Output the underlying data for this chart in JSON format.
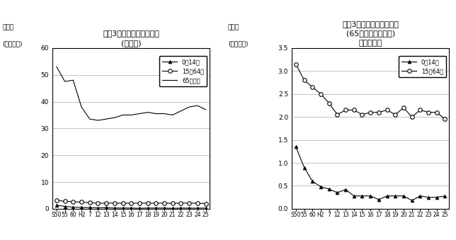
{
  "x_labels": [
    "S50",
    "55",
    "60",
    "H2",
    "7",
    "12",
    "13",
    "14",
    "15",
    "16",
    "17",
    "18",
    "19",
    "20",
    "21",
    "22",
    "23",
    "24",
    "25"
  ],
  "x_indices": [
    0,
    1,
    2,
    3,
    4,
    5,
    6,
    7,
    8,
    9,
    10,
    11,
    12,
    13,
    14,
    15,
    16,
    17,
    18
  ],
  "age65_data": [
    53.0,
    47.5,
    48.0,
    38.0,
    33.5,
    33.0,
    33.5,
    34.0,
    35.0,
    35.0,
    35.5,
    36.0,
    35.5,
    35.5,
    35.0,
    36.5,
    38.0,
    38.5,
    37.0
  ],
  "age15_64_data": [
    3.15,
    2.8,
    2.65,
    2.5,
    2.3,
    2.05,
    2.15,
    2.15,
    2.05,
    2.1,
    2.1,
    2.15,
    2.05,
    2.2,
    2.0,
    2.15,
    2.1,
    2.1,
    1.95
  ],
  "age0_14_data": [
    1.35,
    0.9,
    0.6,
    0.48,
    0.43,
    0.35,
    0.42,
    0.28,
    0.28,
    0.28,
    0.2,
    0.28,
    0.28,
    0.28,
    0.18,
    0.28,
    0.25,
    0.25,
    0.28
  ],
  "title_left1": "年陂3区分別死亡率の推移",
  "title_left2": "(熊本県)",
  "ylabel_line1": "死亡率",
  "ylabel_line2": "(人口千対)",
  "title_right1": "年陂3区分別死亡率の推移",
  "title_right2": "(65歳未満　熊本県)",
  "title_right3": "左表の拡大",
  "legend_age0": "0～14歳",
  "legend_age15": "15～64歳",
  "legend_age65": "65歳以上",
  "ylim_left": [
    0,
    60
  ],
  "yticks_left": [
    0,
    10,
    20,
    30,
    40,
    50,
    60
  ],
  "ylim_right": [
    0,
    3.5
  ],
  "yticks_right": [
    0,
    0.5,
    1.0,
    1.5,
    2.0,
    2.5,
    3.0,
    3.5
  ],
  "line_color": "#000000",
  "bg_color": "#ffffff",
  "grid_color": "#aaaaaa"
}
